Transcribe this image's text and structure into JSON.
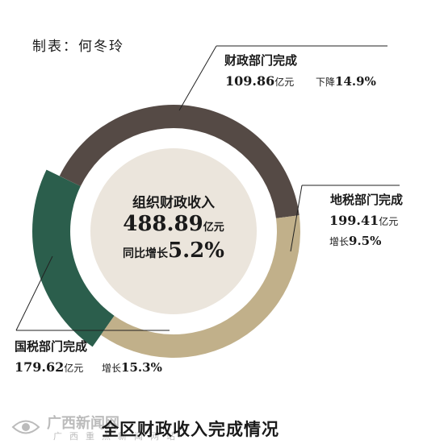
{
  "credit": "制表：何冬玲",
  "chart_data": {
    "type": "pie",
    "style": "donut",
    "colors": {
      "财政部门完成": "#2b5e4c",
      "地税部门完成": "#554a45",
      "国税部门完成": "#c1b08a",
      "center": "#ebe5dc"
    },
    "slices": [
      {
        "label": "财政部门完成",
        "value": 109.86,
        "unit": "亿元",
        "change_text": "下降",
        "change_value": "14.9%"
      },
      {
        "label": "地税部门完成",
        "value": 199.41,
        "unit": "亿元",
        "change_text": "增长",
        "change_value": "9.5%"
      },
      {
        "label": "国税部门完成",
        "value": 179.62,
        "unit": "亿元",
        "change_text": "增长",
        "change_value": "15.3%"
      }
    ],
    "center": {
      "title": "组织财政收入",
      "total": "488.89",
      "unit": "亿元",
      "growth_text": "同比增长",
      "growth_value": "5.2%"
    }
  },
  "footer_title": "全区财政收入完成情况",
  "watermark": {
    "name": "广西新闻网",
    "sub": "广西重点新闻网站"
  }
}
